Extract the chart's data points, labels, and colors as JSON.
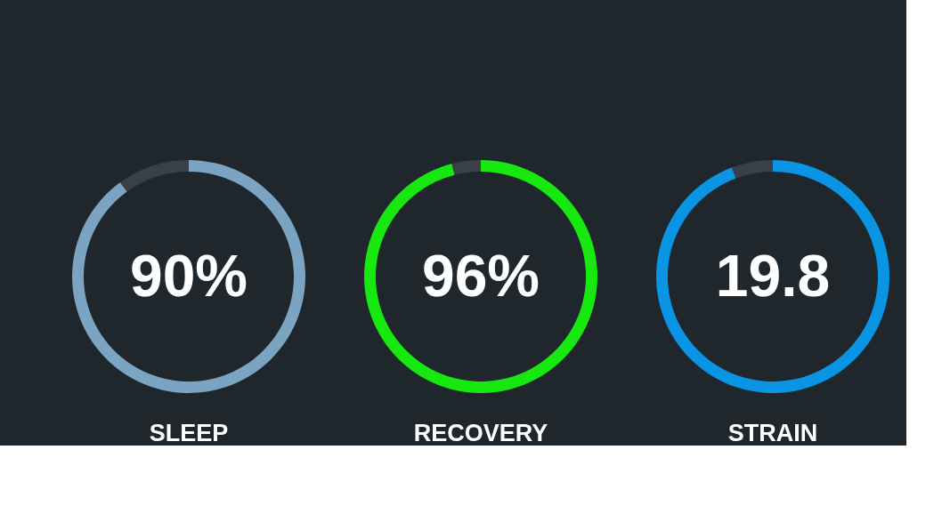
{
  "chart_data": [
    {
      "type": "donut",
      "title": "SLEEP",
      "categories": [
        null,
        null
      ],
      "values": [
        90,
        10
      ],
      "colors": [
        "#7ba4c2",
        "#394147"
      ],
      "value_labels": [
        "90%",
        null
      ]
    },
    {
      "type": "donut",
      "title": "RECOVERY",
      "categories": [
        null,
        null
      ],
      "values": [
        96,
        4
      ],
      "colors": [
        "#17e80f",
        "#394147"
      ],
      "value_labels": [
        "96%",
        null
      ]
    },
    {
      "type": "donut",
      "title": "STRAIN",
      "categories": [
        null,
        null
      ],
      "values": [
        19.8,
        1.2
      ],
      "colors": [
        "#0a94e4",
        "#394147"
      ],
      "value_labels": [
        "19.8",
        null
      ]
    }
  ]
}
